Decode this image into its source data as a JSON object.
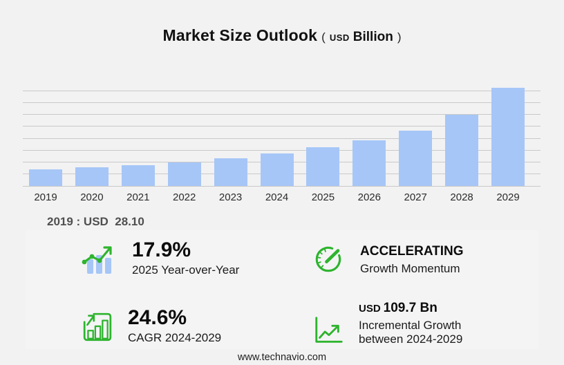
{
  "title": {
    "main": "Market Size Outlook",
    "open": "(",
    "currency": "USD",
    "unit": "Billion",
    "close": ")"
  },
  "chart_data": {
    "type": "bar",
    "title": "Market Size Outlook (USD Billion)",
    "categories": [
      "2019",
      "2020",
      "2021",
      "2022",
      "2023",
      "2024",
      "2025",
      "2026",
      "2027",
      "2028",
      "2029"
    ],
    "values": [
      28.1,
      31.2,
      34.8,
      39.1,
      46.0,
      54.8,
      64.6,
      76.5,
      92.5,
      120.0,
      164.5
    ],
    "xlabel": "",
    "ylabel": "USD Billion",
    "ylim": [
      0,
      160
    ],
    "grid_step": 20,
    "grid": "horizontal-only",
    "legend": "none",
    "labeled_points": {
      "2019": "USD 28.10"
    }
  },
  "note_2019": "2019 : USD  28.10",
  "stats": [
    {
      "icon": "bar-trend-icon",
      "value": "17.9%",
      "label": "2025 Year-over-Year"
    },
    {
      "icon": "gauge-icon",
      "value": "ACCELERATING",
      "label": "Growth Momentum"
    },
    {
      "icon": "chart-box-icon",
      "value": "24.6%",
      "label": "CAGR 2024-2029"
    },
    {
      "icon": "line-growth-icon",
      "value_prefix": "USD",
      "value": "109.7 Bn",
      "label": "Incremental Growth",
      "label2": "between 2024-2029"
    }
  ],
  "footer": {
    "url": "www.technavio.com"
  },
  "colors": {
    "background": "#f2f2f3",
    "bar": "#a6c6f7",
    "green": "#2eb42e",
    "gridline": "#c9c9c9",
    "panel": "#f4f4f5",
    "text": "#111111"
  }
}
